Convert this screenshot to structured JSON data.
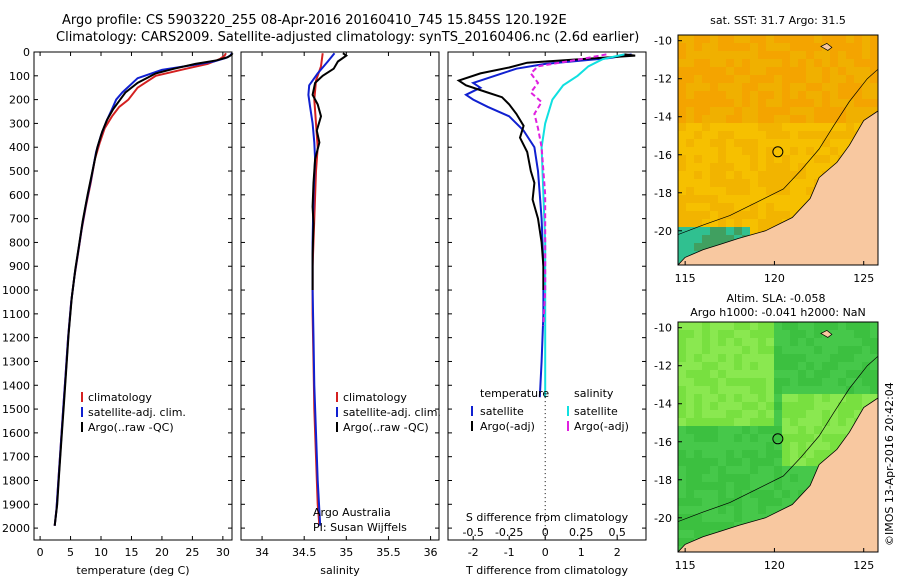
{
  "header": {
    "line1": "Argo profile: CS 5903220_255 08-Apr-2016 20160410_745 15.845S 120.192E",
    "line2": "Climatology: CARS2009. Satellite-adjusted climatology: synTS_20160406.nc (2.6d earlier)"
  },
  "colors": {
    "climatology": "#d42020",
    "satellite": "#1020d0",
    "argo": "#000000",
    "satellite_salinity": "#10e0e0",
    "argo_adj_salinity": "#e020e0",
    "ocean_sst": "#f4b400",
    "land": "#f8c8a0",
    "ocean_sla": "#40c840"
  },
  "chart_data": [
    {
      "type": "line",
      "id": "temperature",
      "xlabel": "temperature (deg C)",
      "ylabel": "",
      "xlim": [
        -1,
        31.5
      ],
      "ylim": [
        0,
        2050
      ],
      "xticks": [
        0,
        5,
        10,
        15,
        20,
        25,
        30
      ],
      "yticks": [
        0,
        100,
        200,
        300,
        400,
        500,
        600,
        700,
        800,
        900,
        1000,
        1100,
        1200,
        1300,
        1400,
        1500,
        1600,
        1700,
        1800,
        1900,
        2000
      ],
      "legend": [
        "climatology",
        "satellite-adj. clim.",
        "Argo(..raw -QC)"
      ],
      "series": [
        {
          "name": "climatology",
          "color": "#d42020",
          "points": [
            [
              30.5,
              5
            ],
            [
              30.3,
              15
            ],
            [
              29.5,
              30
            ],
            [
              27.5,
              50
            ],
            [
              24,
              70
            ],
            [
              19,
              100
            ],
            [
              16,
              150
            ],
            [
              14.5,
              200
            ],
            [
              13,
              230
            ],
            [
              11.8,
              270
            ],
            [
              10.6,
              320
            ],
            [
              9.8,
              380
            ],
            [
              9,
              450
            ],
            [
              8.3,
              550
            ],
            [
              7.5,
              650
            ],
            [
              6.8,
              750
            ],
            [
              6.2,
              850
            ],
            [
              5.6,
              950
            ],
            [
              5.1,
              1050
            ],
            [
              4.6,
              1200
            ],
            [
              4.2,
              1350
            ],
            [
              3.8,
              1500
            ],
            [
              3.4,
              1650
            ],
            [
              3.0,
              1800
            ],
            [
              2.7,
              1920
            ],
            [
              2.4,
              1990
            ]
          ]
        },
        {
          "name": "satellite-adj. clim.",
          "color": "#1020d0",
          "points": [
            [
              31.5,
              5
            ],
            [
              31.2,
              15
            ],
            [
              30.5,
              25
            ],
            [
              28.5,
              40
            ],
            [
              25,
              55
            ],
            [
              20,
              75
            ],
            [
              16,
              110
            ],
            [
              13.5,
              170
            ],
            [
              12.5,
              200
            ],
            [
              11.8,
              240
            ],
            [
              10.9,
              290
            ],
            [
              10,
              350
            ],
            [
              9.2,
              420
            ],
            [
              8.4,
              530
            ],
            [
              7.6,
              630
            ],
            [
              6.9,
              730
            ],
            [
              6.3,
              830
            ],
            [
              5.7,
              930
            ],
            [
              5.1,
              1050
            ],
            [
              4.6,
              1200
            ],
            [
              4.2,
              1350
            ],
            [
              3.8,
              1500
            ],
            [
              3.4,
              1650
            ],
            [
              3.0,
              1800
            ],
            [
              2.7,
              1920
            ],
            [
              2.4,
              1990
            ]
          ]
        },
        {
          "name": "Argo(..raw -QC)",
          "color": "#000000",
          "points": [
            [
              31.6,
              5
            ],
            [
              31.4,
              12
            ],
            [
              30.8,
              22
            ],
            [
              29,
              35
            ],
            [
              25.5,
              50
            ],
            [
              22,
              70
            ],
            [
              19,
              90
            ],
            [
              16,
              130
            ],
            [
              14,
              170
            ],
            [
              13,
              205
            ],
            [
              12,
              240
            ],
            [
              11,
              285
            ],
            [
              10.2,
              335
            ],
            [
              9.4,
              400
            ],
            [
              8.6,
              500
            ],
            [
              7.8,
              600
            ],
            [
              7,
              710
            ],
            [
              6.4,
              810
            ],
            [
              5.8,
              910
            ],
            [
              5.2,
              1030
            ],
            [
              4.7,
              1180
            ],
            [
              4.3,
              1330
            ],
            [
              3.9,
              1480
            ],
            [
              3.5,
              1630
            ],
            [
              3.1,
              1780
            ],
            [
              2.8,
              1900
            ],
            [
              2.4,
              1990
            ]
          ]
        }
      ]
    },
    {
      "type": "line",
      "id": "salinity",
      "xlabel": "salinity",
      "ylabel": "",
      "xlim": [
        33.75,
        36.1
      ],
      "ylim": [
        0,
        2050
      ],
      "xticks": [
        34,
        34.5,
        35,
        35.5,
        36
      ],
      "legend": [
        "climatology",
        "satellite-adj. clim.",
        "Argo(..raw -QC)"
      ],
      "annotations": [
        "Argo Australia",
        "PI: Susan Wijffels"
      ],
      "series": [
        {
          "name": "climatology",
          "color": "#d42020",
          "points": [
            [
              34.72,
              5
            ],
            [
              34.7,
              60
            ],
            [
              34.64,
              120
            ],
            [
              34.62,
              200
            ],
            [
              34.64,
              300
            ],
            [
              34.66,
              400
            ],
            [
              34.64,
              500
            ],
            [
              34.62,
              700
            ],
            [
              34.6,
              900
            ],
            [
              34.6,
              1100
            ],
            [
              34.61,
              1300
            ],
            [
              34.62,
              1500
            ],
            [
              34.64,
              1700
            ],
            [
              34.66,
              1900
            ],
            [
              34.68,
              1990
            ]
          ]
        },
        {
          "name": "satellite-adj. clim.",
          "color": "#1020d0",
          "points": [
            [
              34.86,
              5
            ],
            [
              34.78,
              40
            ],
            [
              34.66,
              90
            ],
            [
              34.56,
              140
            ],
            [
              34.55,
              180
            ],
            [
              34.57,
              230
            ],
            [
              34.6,
              300
            ],
            [
              34.62,
              380
            ],
            [
              34.63,
              450
            ],
            [
              34.61,
              600
            ],
            [
              34.6,
              800
            ],
            [
              34.6,
              1000
            ],
            [
              34.61,
              1200
            ],
            [
              34.62,
              1400
            ],
            [
              34.64,
              1600
            ],
            [
              34.66,
              1800
            ],
            [
              34.69,
              1990
            ]
          ]
        },
        {
          "name": "Argo(..raw -QC)",
          "color": "#000000",
          "points": [
            [
              34.96,
              5
            ],
            [
              35.0,
              15
            ],
            [
              34.9,
              40
            ],
            [
              34.85,
              70
            ],
            [
              34.72,
              100
            ],
            [
              34.63,
              130
            ],
            [
              34.6,
              180
            ],
            [
              34.66,
              220
            ],
            [
              34.7,
              270
            ],
            [
              34.65,
              330
            ],
            [
              34.68,
              380
            ],
            [
              34.63,
              450
            ],
            [
              34.61,
              550
            ],
            [
              34.6,
              650
            ],
            [
              34.61,
              720
            ],
            [
              34.6,
              850
            ],
            [
              34.6,
              1000
            ]
          ]
        }
      ]
    },
    {
      "type": "line",
      "id": "difference",
      "xlabel": "T difference from climatology",
      "top_label": "S difference from climatology",
      "xlim": [
        -2.7,
        2.8
      ],
      "ylim": [
        0,
        2050
      ],
      "xticks": [
        -2,
        -1,
        0,
        1,
        2
      ],
      "s_ticks": [
        -0.5,
        -0.25,
        0,
        0.25,
        0.5
      ],
      "legend": {
        "temperature": [
          "satellite",
          "Argo(-adj)"
        ],
        "salinity": [
          "satellite",
          "Argo(-adj)"
        ]
      },
      "legend_titles": [
        "temperature",
        "salinity"
      ],
      "series": [
        {
          "name": "temperature satellite",
          "color": "#1020d0",
          "points": [
            [
              2.4,
              10
            ],
            [
              1.8,
              25
            ],
            [
              0,
              50
            ],
            [
              -0.8,
              70
            ],
            [
              -1.2,
              90
            ],
            [
              -1.6,
              110
            ],
            [
              -2.0,
              130
            ],
            [
              -1.8,
              150
            ],
            [
              -2.2,
              180
            ],
            [
              -2.0,
              200
            ],
            [
              -1.6,
              230
            ],
            [
              -1.0,
              270
            ],
            [
              -0.6,
              330
            ],
            [
              -0.3,
              400
            ],
            [
              -0.2,
              500
            ],
            [
              -0.1,
              700
            ],
            [
              -0.05,
              900
            ],
            [
              -0.05,
              1100
            ],
            [
              -0.1,
              1300
            ],
            [
              -0.15,
              1450
            ]
          ]
        },
        {
          "name": "temperature Argo(-adj)",
          "color": "#000000",
          "points": [
            [
              2.2,
              10
            ],
            [
              2.5,
              15
            ],
            [
              1.0,
              30
            ],
            [
              -0.5,
              45
            ],
            [
              -1.0,
              65
            ],
            [
              -1.8,
              90
            ],
            [
              -2.4,
              120
            ],
            [
              -2.2,
              140
            ],
            [
              -1.6,
              170
            ],
            [
              -1.2,
              190
            ],
            [
              -1.0,
              220
            ],
            [
              -0.8,
              260
            ],
            [
              -0.6,
              310
            ],
            [
              -0.7,
              360
            ],
            [
              -0.5,
              420
            ],
            [
              -0.4,
              500
            ],
            [
              -0.3,
              550
            ],
            [
              -0.35,
              620
            ],
            [
              -0.2,
              700
            ],
            [
              -0.1,
              800
            ],
            [
              -0.05,
              900
            ],
            [
              -0.05,
              1000
            ]
          ]
        },
        {
          "name": "salinity satellite",
          "color": "#10e0e0",
          "points": [
            [
              2.2,
              10
            ],
            [
              1.6,
              30
            ],
            [
              1.2,
              60
            ],
            [
              0.9,
              100
            ],
            [
              0.5,
              140
            ],
            [
              0.2,
              200
            ],
            [
              0,
              300
            ],
            [
              -0.1,
              400
            ],
            [
              -0.05,
              600
            ],
            [
              0,
              800
            ],
            [
              0,
              1000
            ],
            [
              0,
              1200
            ],
            [
              0,
              1450
            ]
          ]
        },
        {
          "name": "salinity Argo(-adj)",
          "color": "#e020e0",
          "points": [
            [
              1.7,
              10
            ],
            [
              1.0,
              30
            ],
            [
              -0.2,
              60
            ],
            [
              -0.4,
              90
            ],
            [
              -0.2,
              130
            ],
            [
              -0.4,
              170
            ],
            [
              -0.1,
              210
            ],
            [
              -0.3,
              260
            ],
            [
              -0.2,
              320
            ],
            [
              -0.1,
              400
            ],
            [
              -0.05,
              500
            ],
            [
              0,
              600
            ],
            [
              0,
              800
            ],
            [
              0,
              1000
            ],
            [
              -0.05,
              1150
            ]
          ]
        }
      ]
    },
    {
      "type": "heatmap",
      "id": "sst-map",
      "title": "sat. SST: 31.7  Argo: 31.5",
      "xticks": [
        115,
        120,
        125
      ],
      "yticks": [
        -10,
        -12,
        -14,
        -16,
        -18,
        -20
      ],
      "xlim": [
        114.6,
        125.8
      ],
      "ylim": [
        -21.8,
        -9.7
      ],
      "marker": {
        "lon": 120.192,
        "lat": -15.845
      }
    },
    {
      "type": "heatmap",
      "id": "sla-map",
      "title": "Altim. SLA: -0.058",
      "subtitle": "Argo h1000: -0.041 h2000: NaN",
      "xticks": [
        115,
        120,
        125
      ],
      "yticks": [
        -10,
        -12,
        -14,
        -16,
        -18,
        -20
      ],
      "xlim": [
        114.6,
        125.8
      ],
      "ylim": [
        -21.8,
        -9.7
      ],
      "marker": {
        "lon": 120.192,
        "lat": -15.845
      }
    }
  ],
  "watermark": "©IMOS 13-Apr-2016 20:42:04"
}
